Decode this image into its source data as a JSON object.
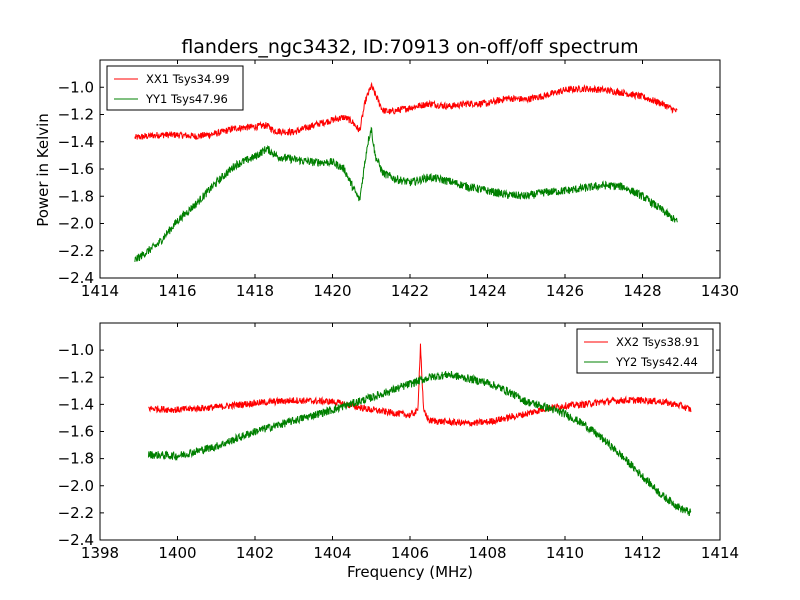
{
  "figure": {
    "title": "flanders_ngc3432, ID:70913 on-off/off spectrum",
    "ylabel": "Power in Kelvin",
    "xlabel": "Frequency (MHz)"
  },
  "chart_data": [
    {
      "type": "line",
      "title": "flanders_ngc3432, ID:70913 on-off/off spectrum",
      "ylabel": "Power in Kelvin",
      "xlabel": "",
      "xlim": [
        1414,
        1430
      ],
      "ylim": [
        -2.4,
        -0.8
      ],
      "xticks": [
        1414,
        1416,
        1418,
        1420,
        1422,
        1424,
        1426,
        1428,
        1430
      ],
      "yticks": [
        -2.4,
        -2.2,
        -2.0,
        -1.8,
        -1.6,
        -1.4,
        -1.2,
        -1.0
      ],
      "xrange_data": [
        1414.9,
        1428.9
      ],
      "legend_position": "upper-left",
      "grid": false,
      "series": [
        {
          "name": "XX1 Tsys34.99",
          "color": "#ff0000",
          "x": [
            1414.9,
            1415.5,
            1416.0,
            1416.5,
            1417.0,
            1417.5,
            1418.0,
            1418.3,
            1418.5,
            1419.0,
            1419.5,
            1420.0,
            1420.3,
            1420.5,
            1420.7,
            1420.85,
            1421.0,
            1421.1,
            1421.3,
            1421.5,
            1422.0,
            1422.5,
            1423.0,
            1423.5,
            1424.0,
            1424.5,
            1425.0,
            1425.5,
            1426.0,
            1426.5,
            1427.0,
            1427.5,
            1428.0,
            1428.5,
            1428.9
          ],
          "y": [
            -1.37,
            -1.35,
            -1.35,
            -1.36,
            -1.34,
            -1.3,
            -1.29,
            -1.28,
            -1.32,
            -1.33,
            -1.28,
            -1.24,
            -1.22,
            -1.25,
            -1.32,
            -1.1,
            -0.99,
            -1.05,
            -1.17,
            -1.18,
            -1.15,
            -1.12,
            -1.14,
            -1.12,
            -1.12,
            -1.08,
            -1.09,
            -1.06,
            -1.02,
            -1.01,
            -1.02,
            -1.04,
            -1.07,
            -1.12,
            -1.18
          ],
          "noise": 0.025
        },
        {
          "name": "YY1 Tsys47.96",
          "color": "#008000",
          "x": [
            1414.9,
            1415.5,
            1416.0,
            1416.5,
            1417.0,
            1417.5,
            1418.0,
            1418.3,
            1418.6,
            1419.0,
            1419.5,
            1420.0,
            1420.3,
            1420.5,
            1420.7,
            1420.9,
            1421.0,
            1421.1,
            1421.3,
            1421.6,
            1422.0,
            1422.5,
            1423.0,
            1423.5,
            1424.0,
            1424.5,
            1425.0,
            1425.5,
            1426.0,
            1426.5,
            1427.0,
            1427.5,
            1428.0,
            1428.5,
            1428.9
          ],
          "y": [
            -2.27,
            -2.15,
            -1.98,
            -1.85,
            -1.7,
            -1.57,
            -1.51,
            -1.45,
            -1.51,
            -1.53,
            -1.55,
            -1.55,
            -1.6,
            -1.72,
            -1.83,
            -1.42,
            -1.3,
            -1.5,
            -1.63,
            -1.67,
            -1.7,
            -1.66,
            -1.69,
            -1.73,
            -1.76,
            -1.79,
            -1.8,
            -1.77,
            -1.76,
            -1.74,
            -1.72,
            -1.73,
            -1.8,
            -1.9,
            -1.99
          ],
          "noise": 0.03
        }
      ]
    },
    {
      "type": "line",
      "title": "",
      "ylabel": "",
      "xlabel": "Frequency (MHz)",
      "xlim": [
        1398,
        1414
      ],
      "ylim": [
        -2.4,
        -0.8
      ],
      "xticks": [
        1398,
        1400,
        1402,
        1404,
        1406,
        1408,
        1410,
        1412,
        1414
      ],
      "yticks": [
        -2.4,
        -2.2,
        -2.0,
        -1.8,
        -1.6,
        -1.4,
        -1.2,
        -1.0
      ],
      "xrange_data": [
        1399.25,
        1413.25
      ],
      "legend_position": "upper-right",
      "grid": false,
      "series": [
        {
          "name": "XX2 Tsys38.91",
          "color": "#ff0000",
          "x": [
            1399.25,
            1400.0,
            1401.0,
            1402.0,
            1403.0,
            1404.0,
            1405.0,
            1406.0,
            1406.2,
            1406.27,
            1406.35,
            1406.5,
            1407.0,
            1407.5,
            1408.0,
            1408.5,
            1409.0,
            1409.5,
            1410.0,
            1410.5,
            1411.0,
            1411.5,
            1412.0,
            1412.5,
            1413.0,
            1413.25
          ],
          "y": [
            -1.43,
            -1.44,
            -1.42,
            -1.39,
            -1.37,
            -1.38,
            -1.44,
            -1.48,
            -1.45,
            -0.96,
            -1.45,
            -1.52,
            -1.53,
            -1.54,
            -1.53,
            -1.5,
            -1.47,
            -1.43,
            -1.41,
            -1.4,
            -1.38,
            -1.37,
            -1.37,
            -1.38,
            -1.41,
            -1.44
          ],
          "noise": 0.025
        },
        {
          "name": "YY2 Tsys42.44",
          "color": "#008000",
          "x": [
            1399.25,
            1400.0,
            1401.0,
            1402.0,
            1403.0,
            1404.0,
            1405.0,
            1406.0,
            1406.5,
            1407.0,
            1407.5,
            1408.0,
            1408.5,
            1409.0,
            1409.5,
            1410.0,
            1410.5,
            1411.0,
            1411.5,
            1412.0,
            1412.5,
            1413.0,
            1413.25
          ],
          "y": [
            -1.77,
            -1.78,
            -1.71,
            -1.6,
            -1.52,
            -1.44,
            -1.35,
            -1.25,
            -1.2,
            -1.18,
            -1.21,
            -1.24,
            -1.3,
            -1.38,
            -1.42,
            -1.47,
            -1.55,
            -1.66,
            -1.79,
            -1.93,
            -2.07,
            -2.17,
            -2.2
          ],
          "noise": 0.03
        }
      ]
    }
  ]
}
